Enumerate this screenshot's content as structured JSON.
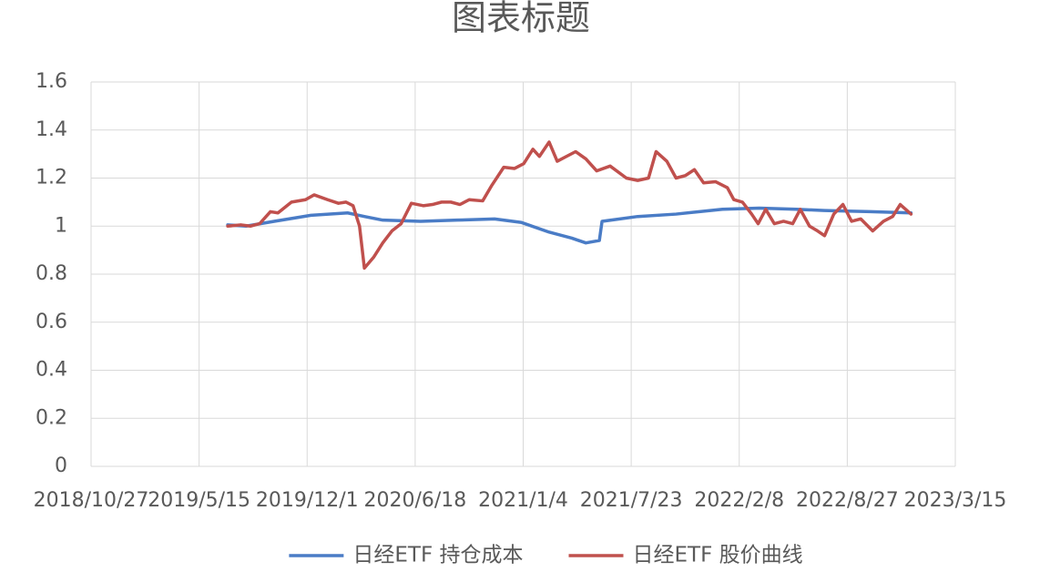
{
  "chart_data": {
    "type": "line",
    "title": "图表标题",
    "xlim": [
      "2018/10/27",
      "2023/3/15"
    ],
    "xticks": [
      "2018/10/27",
      "2019/5/15",
      "2019/12/1",
      "2020/6/18",
      "2021/1/4",
      "2021/7/23",
      "2022/2/8",
      "2022/8/27",
      "2023/3/15"
    ],
    "ylim": [
      0,
      1.6
    ],
    "yticks": [
      0,
      0.2,
      0.4,
      0.6,
      0.8,
      1,
      1.2,
      1.4,
      1.6
    ],
    "grid": true,
    "legend": "bottom",
    "series": [
      {
        "name": "日经ETF 持仓成本",
        "color": "#4a7cc6",
        "x": [
          "2019/7/7",
          "2019/8/10",
          "2019/10/1",
          "2019/12/8",
          "2020/2/14",
          "2020/3/16",
          "2020/4/19",
          "2020/6/28",
          "2020/9/4",
          "2020/11/12",
          "2021/1/1",
          "2021/2/21",
          "2021/4/4",
          "2021/4/30",
          "2021/5/25",
          "2021/5/30",
          "2021/8/4",
          "2021/10/14",
          "2022/1/8",
          "2022/3/17",
          "2022/5/25",
          "2022/7/16",
          "2022/10/9",
          "2022/12/23"
        ],
        "values": [
          1.005,
          1.0,
          1.02,
          1.045,
          1.055,
          1.04,
          1.025,
          1.02,
          1.025,
          1.03,
          1.015,
          0.975,
          0.95,
          0.93,
          0.94,
          1.02,
          1.04,
          1.05,
          1.07,
          1.075,
          1.07,
          1.065,
          1.06,
          1.055
        ]
      },
      {
        "name": "日经ETF 股价曲线",
        "color": "#c0504d",
        "x": [
          "2019/7/7",
          "2019/8/1",
          "2019/8/18",
          "2019/9/4",
          "2019/9/24",
          "2019/10/8",
          "2019/11/2",
          "2019/11/28",
          "2019/12/14",
          "2020/1/8",
          "2020/1/28",
          "2020/2/11",
          "2020/2/24",
          "2020/3/7",
          "2020/3/16",
          "2020/4/2",
          "2020/4/19",
          "2020/5/6",
          "2020/5/23",
          "2020/6/11",
          "2020/7/3",
          "2020/7/20",
          "2020/8/6",
          "2020/8/23",
          "2020/9/9",
          "2020/9/26",
          "2020/10/21",
          "2020/11/7",
          "2020/11/29",
          "2020/12/19",
          "2021/1/5",
          "2021/1/22",
          "2021/2/3",
          "2021/2/21",
          "2021/3/8",
          "2021/3/25",
          "2021/4/11",
          "2021/4/30",
          "2021/5/20",
          "2021/6/14",
          "2021/7/14",
          "2021/8/4",
          "2021/8/24",
          "2021/9/7",
          "2021/9/27",
          "2021/10/14",
          "2021/10/31",
          "2021/11/17",
          "2021/12/4",
          "2021/12/26",
          "2022/1/17",
          "2022/1/29",
          "2022/2/14",
          "2022/3/3",
          "2022/3/15",
          "2022/3/29",
          "2022/4/14",
          "2022/5/1",
          "2022/5/18",
          "2022/6/1",
          "2022/6/18",
          "2022/7/3",
          "2022/7/16",
          "2022/8/2",
          "2022/8/19",
          "2022/9/4",
          "2022/9/21",
          "2022/10/13",
          "2022/11/2",
          "2022/11/19",
          "2022/12/3",
          "2022/12/23"
        ],
        "values": [
          1.0,
          1.005,
          1.0,
          1.01,
          1.06,
          1.055,
          1.1,
          1.11,
          1.13,
          1.11,
          1.095,
          1.1,
          1.085,
          1.0,
          0.825,
          0.87,
          0.93,
          0.98,
          1.01,
          1.095,
          1.085,
          1.09,
          1.1,
          1.1,
          1.09,
          1.11,
          1.105,
          1.17,
          1.245,
          1.24,
          1.26,
          1.32,
          1.29,
          1.35,
          1.27,
          1.29,
          1.31,
          1.28,
          1.23,
          1.25,
          1.2,
          1.19,
          1.2,
          1.31,
          1.27,
          1.2,
          1.21,
          1.235,
          1.18,
          1.185,
          1.16,
          1.11,
          1.1,
          1.05,
          1.01,
          1.07,
          1.01,
          1.02,
          1.01,
          1.07,
          1.0,
          0.98,
          0.96,
          1.05,
          1.09,
          1.02,
          1.03,
          0.98,
          1.02,
          1.04,
          1.09,
          1.05
        ]
      }
    ]
  }
}
